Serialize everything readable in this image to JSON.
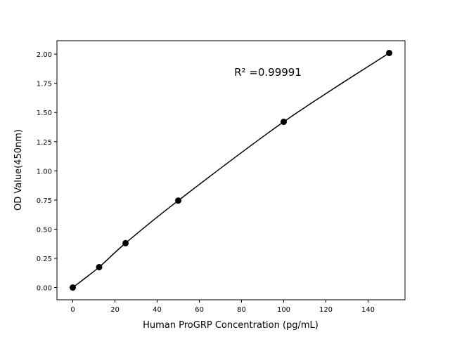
{
  "chart_data": {
    "type": "line",
    "title": "",
    "xlabel": "Human ProGRP Concentration (pg/mL)",
    "ylabel": "OD Value(450nm)",
    "x": [
      0,
      12.5,
      25,
      50,
      100,
      150
    ],
    "y": [
      0.0,
      0.175,
      0.38,
      0.745,
      1.42,
      2.01
    ],
    "xlim": [
      -7.5,
      157.5
    ],
    "ylim": [
      -0.105,
      2.115
    ],
    "xticks": [
      "0",
      "20",
      "40",
      "60",
      "80",
      "100",
      "120",
      "140"
    ],
    "yticks": [
      "0.00",
      "0.25",
      "0.50",
      "0.75",
      "1.00",
      "1.25",
      "1.50",
      "1.75",
      "2.00"
    ],
    "annotation": "R² =0.99991",
    "grid": false,
    "color": "#000000",
    "markers": true
  }
}
